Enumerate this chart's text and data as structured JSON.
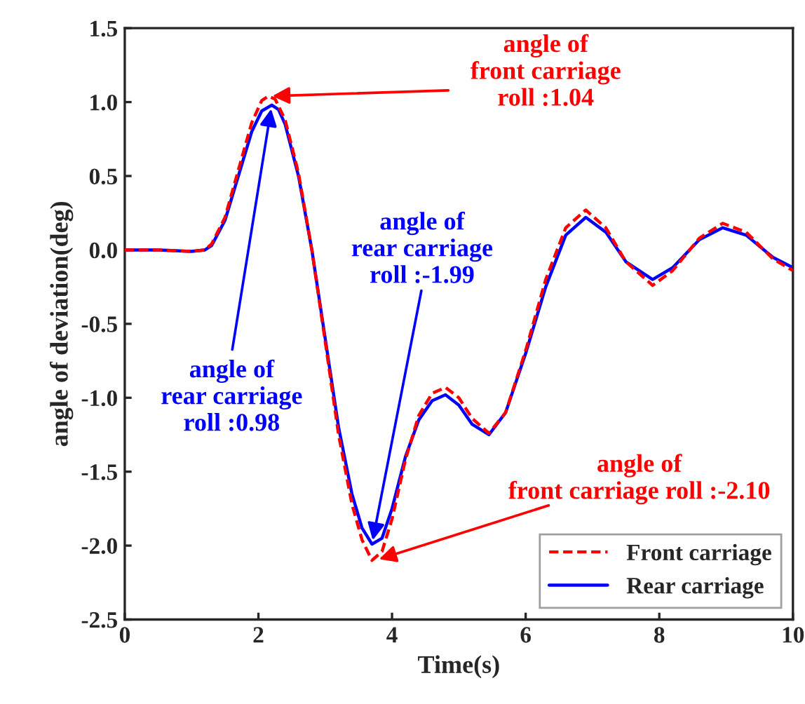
{
  "chart_data": {
    "type": "line",
    "xlabel": "Time(s)",
    "ylabel": "angle of deviation(deg)",
    "xlim": [
      0,
      10
    ],
    "ylim": [
      -2.5,
      1.5
    ],
    "xticks": [
      0,
      2,
      4,
      6,
      8,
      10
    ],
    "yticks": [
      {
        "value": -2.5,
        "label": "-2.5"
      },
      {
        "value": -2,
        "label": "-2.0"
      },
      {
        "value": -1.5,
        "label": "-1.5"
      },
      {
        "value": -1,
        "label": "-1.0"
      },
      {
        "value": -0.5,
        "label": "-0.5"
      },
      {
        "value": 0,
        "label": "0.0"
      },
      {
        "value": 0.5,
        "label": "0.5"
      },
      {
        "value": 1,
        "label": "1.0"
      },
      {
        "value": 1.5,
        "label": "1.5"
      }
    ],
    "grid": false,
    "legend": "bottom right",
    "marker": "none",
    "series": [
      {
        "name": "Front carriage",
        "color": "#ff0000",
        "line_style": "dashed",
        "x": [
          0,
          0.5,
          1.0,
          1.2,
          1.3,
          1.5,
          1.7,
          1.9,
          2.05,
          2.15,
          2.25,
          2.4,
          2.6,
          2.8,
          3.0,
          3.2,
          3.4,
          3.55,
          3.7,
          3.85,
          4.0,
          4.2,
          4.4,
          4.6,
          4.8,
          5.0,
          5.2,
          5.45,
          5.7,
          6.0,
          6.3,
          6.6,
          6.9,
          7.2,
          7.5,
          7.9,
          8.2,
          8.6,
          8.95,
          9.3,
          9.7,
          10
        ],
        "values": [
          0,
          0,
          -0.01,
          0,
          0.04,
          0.22,
          0.54,
          0.86,
          1.01,
          1.04,
          1.02,
          0.88,
          0.52,
          0.0,
          -0.62,
          -1.25,
          -1.72,
          -1.96,
          -2.1,
          -2.04,
          -1.82,
          -1.42,
          -1.12,
          -0.97,
          -0.93,
          -1.0,
          -1.14,
          -1.24,
          -1.1,
          -0.68,
          -0.2,
          0.15,
          0.27,
          0.15,
          -0.08,
          -0.24,
          -0.14,
          0.08,
          0.18,
          0.12,
          -0.06,
          -0.14
        ]
      },
      {
        "name": "Rear carriage",
        "color": "#0000ff",
        "line_style": "solid",
        "x": [
          0,
          0.5,
          1.0,
          1.2,
          1.3,
          1.5,
          1.7,
          1.9,
          2.05,
          2.2,
          2.3,
          2.4,
          2.6,
          2.8,
          3.0,
          3.2,
          3.4,
          3.55,
          3.7,
          3.85,
          4.0,
          4.2,
          4.4,
          4.6,
          4.8,
          5.0,
          5.2,
          5.45,
          5.7,
          6.0,
          6.3,
          6.6,
          6.9,
          7.2,
          7.5,
          7.9,
          8.2,
          8.6,
          8.95,
          9.3,
          9.7,
          10
        ],
        "values": [
          0,
          0,
          -0.01,
          0,
          0.03,
          0.2,
          0.5,
          0.8,
          0.94,
          0.98,
          0.95,
          0.85,
          0.5,
          0.0,
          -0.6,
          -1.2,
          -1.65,
          -1.88,
          -1.99,
          -1.95,
          -1.75,
          -1.4,
          -1.15,
          -1.02,
          -0.98,
          -1.05,
          -1.18,
          -1.25,
          -1.1,
          -0.7,
          -0.25,
          0.1,
          0.22,
          0.12,
          -0.08,
          -0.2,
          -0.12,
          0.07,
          0.15,
          0.1,
          -0.05,
          -0.12
        ]
      }
    ],
    "annotations": [
      {
        "text": "angle of\nfront carriage\nroll :1.04",
        "x": 2.15,
        "y": 1.04
      },
      {
        "text": "angle of\nrear carriage\nroll :0.98",
        "x": 2.2,
        "y": 0.98
      },
      {
        "text": "angle of\nrear carriage\nroll :-1.99",
        "x": 3.7,
        "y": -1.99
      },
      {
        "text": "angle of\nfront carriage roll :-2.10",
        "x": 3.75,
        "y": -2.1
      }
    ]
  }
}
